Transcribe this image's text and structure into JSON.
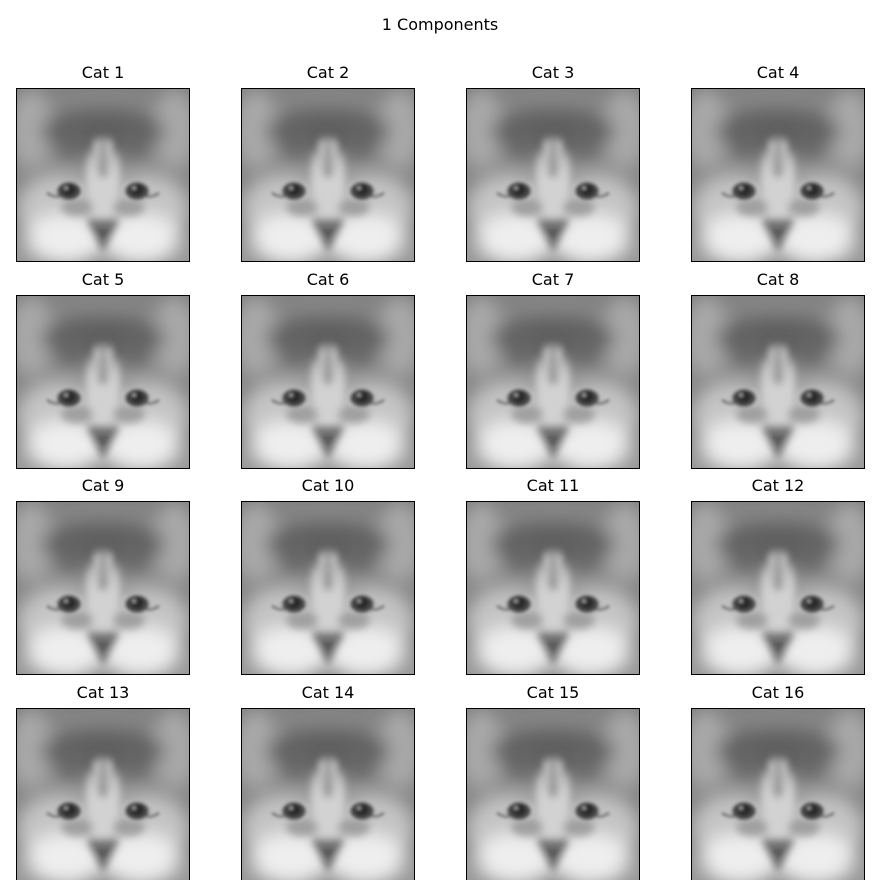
{
  "figure": {
    "suptitle": "1 Components"
  },
  "panels": [
    {
      "title": "Cat 1"
    },
    {
      "title": "Cat 2"
    },
    {
      "title": "Cat 3"
    },
    {
      "title": "Cat 4"
    },
    {
      "title": "Cat 5"
    },
    {
      "title": "Cat 6"
    },
    {
      "title": "Cat 7"
    },
    {
      "title": "Cat 8"
    },
    {
      "title": "Cat 9"
    },
    {
      "title": "Cat 10"
    },
    {
      "title": "Cat 11"
    },
    {
      "title": "Cat 12"
    },
    {
      "title": "Cat 13"
    },
    {
      "title": "Cat 14"
    },
    {
      "title": "Cat 15"
    },
    {
      "title": "Cat 16"
    }
  ],
  "colors": {
    "image_mid_gray": "#8a8a8a",
    "frame": "#000000",
    "background": "#ffffff"
  },
  "images": {
    "subject": "blurred grayscale cat face reconstruction",
    "colormap": "gray"
  }
}
